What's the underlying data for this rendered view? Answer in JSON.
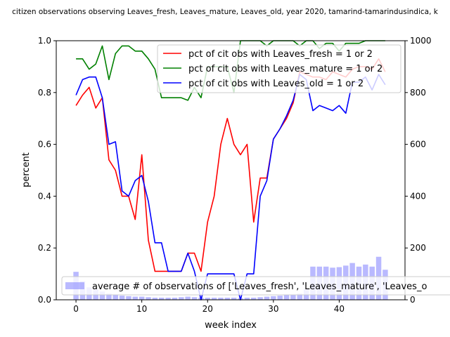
{
  "chart_data": {
    "type": "line",
    "title": "citizen observations observing Leaves_fresh, Leaves_mature, Leaves_old, year 2020, tamarind-tamarindusindica, k",
    "xlabel": "week index",
    "ylabel": "percent",
    "xlim": [
      -3,
      50
    ],
    "ylim": [
      0,
      1.0
    ],
    "y2lim": [
      0,
      1000
    ],
    "xticks": [
      "0",
      "10",
      "20",
      "30",
      "40"
    ],
    "yticks": [
      "0.0",
      "0.2",
      "0.4",
      "0.6",
      "0.8",
      "1.0"
    ],
    "y2ticks": [
      "0",
      "200",
      "400",
      "600",
      "800",
      "1000"
    ],
    "x": [
      0,
      1,
      2,
      3,
      4,
      5,
      6,
      7,
      8,
      9,
      10,
      11,
      12,
      13,
      14,
      15,
      16,
      17,
      18,
      19,
      20,
      21,
      22,
      23,
      24,
      25,
      26,
      27,
      28,
      29,
      30,
      31,
      32,
      33,
      34,
      35,
      36,
      37,
      38,
      39,
      40,
      41,
      42,
      43,
      44,
      45,
      46,
      47
    ],
    "series": [
      {
        "name": "pct of cit obs with Leaves_fresh = 1 or 2",
        "color": "#ff0000",
        "values": [
          0.75,
          0.79,
          0.82,
          0.74,
          0.78,
          0.54,
          0.5,
          0.4,
          0.4,
          0.31,
          0.56,
          0.23,
          0.11,
          0.11,
          0.11,
          0.11,
          0.11,
          0.18,
          0.18,
          0.11,
          0.3,
          0.4,
          0.6,
          0.7,
          0.6,
          0.56,
          0.6,
          0.3,
          0.47,
          0.47,
          0.62,
          0.66,
          0.7,
          0.76,
          0.88,
          0.87,
          0.86,
          0.86,
          0.85,
          0.88,
          0.87,
          0.86,
          0.89,
          0.9,
          0.9,
          0.89,
          0.93,
          0.88
        ]
      },
      {
        "name": "pct of cit obs with Leaves_mature = 1 or 2",
        "color": "#008000",
        "values": [
          0.93,
          0.93,
          0.89,
          0.91,
          0.98,
          0.85,
          0.95,
          0.98,
          0.98,
          0.96,
          0.96,
          0.93,
          0.89,
          0.78,
          0.78,
          0.78,
          0.78,
          0.77,
          0.82,
          0.78,
          0.9,
          0.9,
          0.9,
          0.9,
          0.8,
          1.0,
          1.0,
          1.0,
          1.0,
          0.98,
          1.0,
          1.0,
          1.0,
          1.0,
          0.98,
          1.0,
          1.0,
          0.97,
          0.99,
          0.99,
          0.96,
          0.99,
          0.99,
          0.99,
          1.0,
          1.0,
          1.0,
          1.0
        ]
      },
      {
        "name": "pct of cit obs with Leaves_old = 1 or 2",
        "color": "#0000ff",
        "values": [
          0.79,
          0.85,
          0.86,
          0.86,
          0.78,
          0.6,
          0.61,
          0.42,
          0.4,
          0.46,
          0.48,
          0.38,
          0.22,
          0.22,
          0.11,
          0.11,
          0.11,
          0.18,
          0.11,
          0.0,
          0.1,
          0.1,
          0.1,
          0.1,
          0.1,
          0.0,
          0.1,
          0.1,
          0.4,
          0.46,
          0.62,
          0.66,
          0.71,
          0.77,
          0.87,
          0.85,
          0.73,
          0.75,
          0.74,
          0.73,
          0.75,
          0.72,
          0.84,
          0.84,
          0.86,
          0.81,
          0.87,
          0.83
        ]
      }
    ],
    "bar_series": {
      "name": "average # of observations of ['Leaves_fresh', 'Leaves_mature', 'Leaves_o",
      "color": "#8080ff",
      "axis": "right",
      "values": [
        108,
        72,
        48,
        40,
        32,
        24,
        20,
        16,
        14,
        12,
        12,
        10,
        8,
        8,
        8,
        8,
        10,
        12,
        10,
        8,
        8,
        8,
        8,
        8,
        8,
        6,
        8,
        8,
        10,
        12,
        14,
        16,
        18,
        20,
        24,
        40,
        128,
        128,
        128,
        124,
        126,
        132,
        142,
        128,
        136,
        128,
        166,
        116
      ]
    },
    "legend_position": "upper-right",
    "bar_legend_position": "lower-center"
  }
}
